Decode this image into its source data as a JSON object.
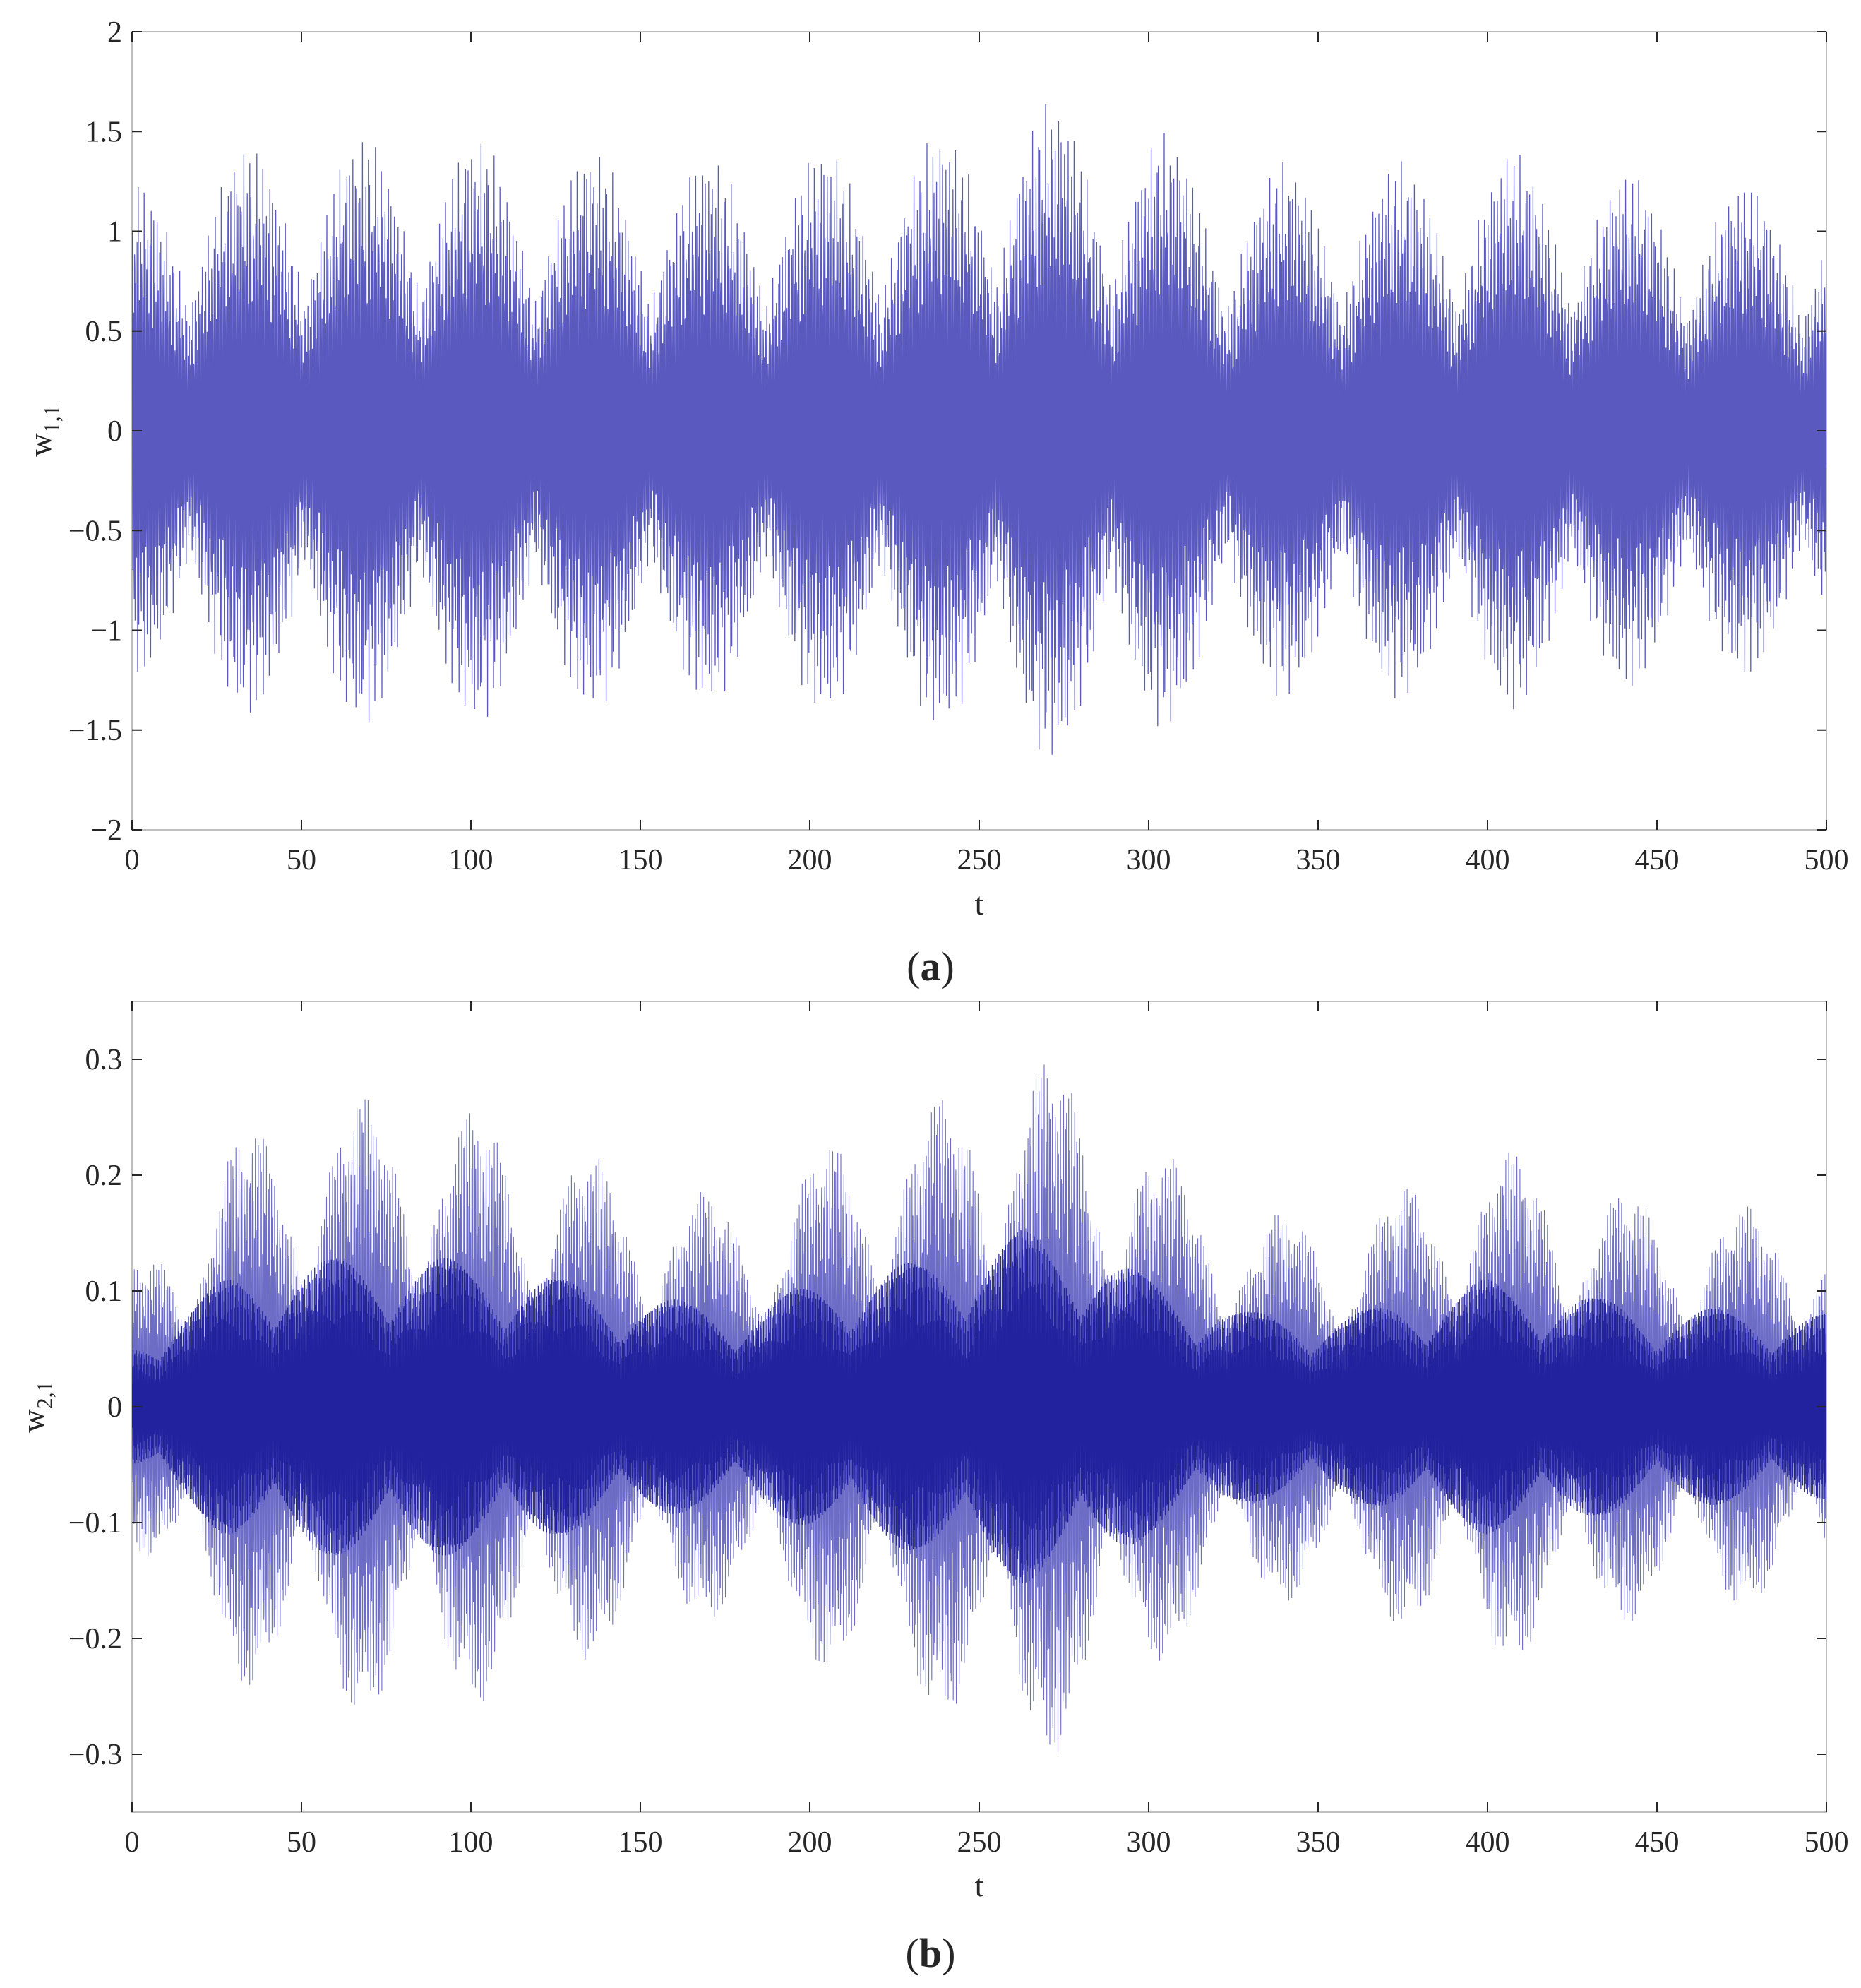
{
  "colors": {
    "series": "#3c3cb4",
    "series_dense": "#1a1a9a",
    "axis": "#262626",
    "box": "#bfbfbf"
  },
  "chart_data": [
    {
      "type": "line",
      "panel_label": "a",
      "xlabel": "t",
      "ylabel_base": "w",
      "ylabel_sub": "1,1",
      "xlim": [
        0,
        500
      ],
      "ylim": [
        -2,
        2
      ],
      "x_ticks": [
        0,
        50,
        100,
        150,
        200,
        250,
        300,
        350,
        400,
        450,
        500
      ],
      "x_tick_labels": [
        "0",
        "50",
        "100",
        "150",
        "200",
        "250",
        "300",
        "350",
        "400",
        "450",
        "500"
      ],
      "y_ticks": [
        -2,
        -1.5,
        -1,
        -0.5,
        0,
        0.5,
        1,
        1.5,
        2
      ],
      "y_tick_labels": [
        "−2",
        "−1.5",
        "−1",
        "−0.5",
        "0",
        "0.5",
        "1",
        "1.5",
        "2"
      ],
      "grid": false,
      "signal": {
        "t_start": 0,
        "t_end": 500,
        "samples": 6000,
        "carrier_period": 0.35,
        "envelope_period": 34,
        "envelope_min": 0.45,
        "peak_envelope": [
          [
            0,
            1.25
          ],
          [
            25,
            1.42
          ],
          [
            60,
            1.48
          ],
          [
            90,
            1.5
          ],
          [
            130,
            1.42
          ],
          [
            170,
            1.38
          ],
          [
            200,
            1.42
          ],
          [
            240,
            1.5
          ],
          [
            262,
            1.7
          ],
          [
            280,
            1.62
          ],
          [
            300,
            1.55
          ],
          [
            320,
            1.35
          ],
          [
            370,
            1.35
          ],
          [
            405,
            1.42
          ],
          [
            450,
            1.28
          ],
          [
            500,
            1.22
          ]
        ]
      }
    },
    {
      "type": "line",
      "panel_label": "b",
      "xlabel": "t",
      "ylabel_base": "w",
      "ylabel_sub": "2,1",
      "xlim": [
        0,
        500
      ],
      "ylim": [
        -0.35,
        0.35
      ],
      "x_ticks": [
        0,
        50,
        100,
        150,
        200,
        250,
        300,
        350,
        400,
        450,
        500
      ],
      "x_tick_labels": [
        "0",
        "50",
        "100",
        "150",
        "200",
        "250",
        "300",
        "350",
        "400",
        "450",
        "500"
      ],
      "y_ticks": [
        -0.3,
        -0.2,
        -0.1,
        0,
        0.1,
        0.2,
        0.3
      ],
      "y_tick_labels": [
        "−0.3",
        "−0.2",
        "−0.1",
        "0",
        "0.1",
        "0.2",
        "0.3"
      ],
      "grid": false,
      "signal": {
        "t_start": 0,
        "t_end": 500,
        "samples": 9000,
        "carrier_period": 0.3,
        "envelope_period": 34,
        "envelope_min": 0.35,
        "peak_envelope": [
          [
            0,
            0.12
          ],
          [
            10,
            0.16
          ],
          [
            30,
            0.24
          ],
          [
            60,
            0.27
          ],
          [
            90,
            0.27
          ],
          [
            120,
            0.24
          ],
          [
            150,
            0.2
          ],
          [
            180,
            0.18
          ],
          [
            210,
            0.24
          ],
          [
            240,
            0.27
          ],
          [
            262,
            0.32
          ],
          [
            285,
            0.28
          ],
          [
            305,
            0.22
          ],
          [
            330,
            0.17
          ],
          [
            360,
            0.17
          ],
          [
            400,
            0.23
          ],
          [
            450,
            0.18
          ],
          [
            500,
            0.17
          ]
        ]
      }
    }
  ]
}
